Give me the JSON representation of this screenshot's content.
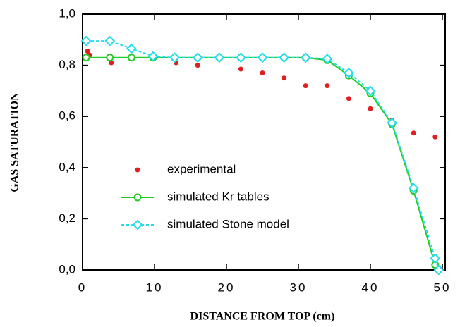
{
  "chart_data": {
    "type": "line",
    "xlabel": "DISTANCE FROM TOP (cm)",
    "ylabel": "GAS SATURATION",
    "xlim": [
      0,
      50
    ],
    "ylim": [
      0,
      1
    ],
    "xticks": [
      0,
      10,
      20,
      30,
      40,
      50
    ],
    "yticks": [
      {
        "value": 0,
        "label": "0,0"
      },
      {
        "value": 0.2,
        "label": "0,2"
      },
      {
        "value": 0.4,
        "label": "0,4"
      },
      {
        "value": 0.6,
        "label": "0,6"
      },
      {
        "value": 0.8,
        "label": "0,8"
      },
      {
        "value": 1,
        "label": "1,0"
      }
    ],
    "series": [
      {
        "name": "experimental",
        "color": "#e02020",
        "style": "dots",
        "x": [
          0.7,
          1.0,
          4,
          13,
          16,
          22,
          25,
          28,
          31,
          34,
          37,
          40,
          43,
          46,
          49
        ],
        "values": [
          0.855,
          0.84,
          0.81,
          0.81,
          0.8,
          0.785,
          0.77,
          0.75,
          0.72,
          0.72,
          0.67,
          0.63,
          0.585,
          0.535,
          0.52
        ]
      },
      {
        "name": "simulated Kr tables",
        "color": "#22cc22",
        "style": "circle-line",
        "x": [
          0.5,
          3.8,
          6.8,
          9.8,
          12.8,
          16,
          19,
          22,
          25,
          28,
          31,
          34,
          37,
          40,
          43,
          46,
          49,
          49.5
        ],
        "values": [
          0.83,
          0.83,
          0.83,
          0.83,
          0.83,
          0.83,
          0.83,
          0.83,
          0.83,
          0.83,
          0.83,
          0.82,
          0.76,
          0.69,
          0.57,
          0.31,
          0.02,
          0.0
        ]
      },
      {
        "name": "simulated Stone model",
        "color": "#22ddee",
        "style": "diamond-dash",
        "x": [
          0.5,
          3.8,
          6.8,
          9.8,
          12.8,
          16,
          19,
          22,
          25,
          28,
          31,
          34,
          37,
          40,
          43,
          46,
          49,
          49.5
        ],
        "values": [
          0.895,
          0.895,
          0.865,
          0.835,
          0.83,
          0.83,
          0.83,
          0.83,
          0.83,
          0.83,
          0.83,
          0.825,
          0.77,
          0.7,
          0.575,
          0.32,
          0.045,
          0.0
        ]
      }
    ]
  }
}
